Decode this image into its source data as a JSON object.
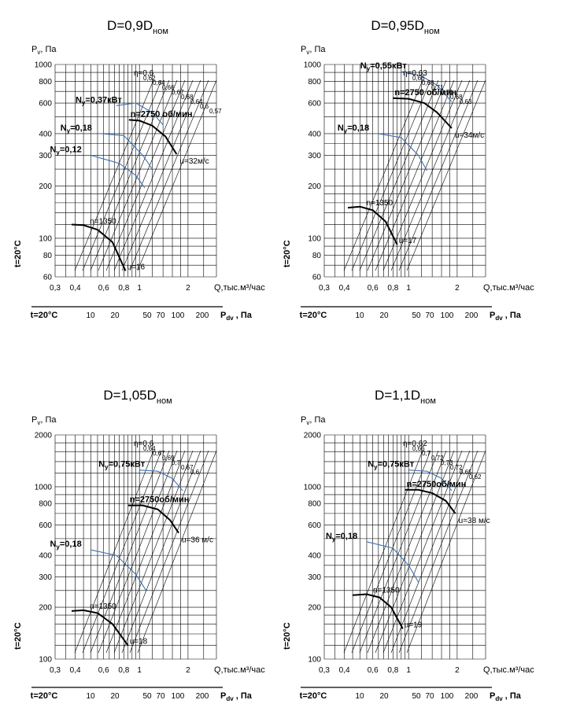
{
  "chart_data": [
    {
      "type": "line",
      "title": "D=0,9D",
      "title_sub": "ном",
      "ylabel": "P",
      "ylabel_sub": "v",
      "ylabel_unit": ", Па",
      "xlabel": "Q,тыс.м³/час",
      "temp_label": "t=20°C",
      "pdv_label": "P",
      "pdv_sub": "dv",
      "pdv_unit": " , Па",
      "ylim": [
        60,
        1000
      ],
      "xlim": [
        0.3,
        3
      ],
      "y_ticks": [
        "60",
        "80",
        "100",
        "200",
        "300",
        "400",
        "600",
        "800",
        "1000"
      ],
      "x_ticks": [
        "0,3",
        "0,4",
        "0,6",
        "0,8",
        "1",
        "2"
      ],
      "pdv_ticks": [
        "10",
        "20",
        "50",
        "70",
        "100",
        "200"
      ],
      "eta_labels": [
        "η=0,6",
        "0,62",
        "0,64",
        "0,66",
        "0,67",
        "0,68",
        "0,64",
        "0,6",
        "0,57"
      ],
      "speed_low": "n=1350",
      "speed_high": "n=2750 об/мин",
      "u_low": "u=16",
      "u_high": "u=32м/с",
      "power": [
        "N",
        "у",
        "=0,12",
        "N",
        "у",
        "=0,18",
        "N",
        "у",
        "=0,37кВт"
      ],
      "series": [
        {
          "name": "n=2750 об/мин",
          "x": [
            0.86,
            1.0,
            1.2,
            1.45,
            1.7
          ],
          "y": [
            480,
            475,
            445,
            385,
            305
          ]
        },
        {
          "name": "n=1350",
          "x": [
            0.38,
            0.45,
            0.55,
            0.68,
            0.82
          ],
          "y": [
            120,
            119,
            112,
            95,
            65
          ]
        },
        {
          "name": "N=0,37кВт",
          "x": [
            0.72,
            0.95,
            1.2,
            1.4
          ],
          "y": [
            580,
            600,
            530,
            450
          ]
        },
        {
          "name": "N=0,18",
          "x": [
            0.58,
            0.8,
            1.05,
            1.2
          ],
          "y": [
            400,
            390,
            300,
            250
          ]
        },
        {
          "name": "N=0,12",
          "x": [
            0.5,
            0.75,
            0.95,
            1.08
          ],
          "y": [
            300,
            270,
            230,
            195
          ]
        }
      ]
    },
    {
      "type": "line",
      "title": "D=0,95D",
      "title_sub": "ном",
      "ylabel": "P",
      "ylabel_sub": "v",
      "ylabel_unit": ", Па",
      "xlabel": "Q,тыс.м³/час",
      "temp_label": "t=20°C",
      "pdv_label": "P",
      "pdv_sub": "dv",
      "pdv_unit": " , Па",
      "ylim": [
        60,
        1000
      ],
      "xlim": [
        0.3,
        3
      ],
      "y_ticks": [
        "60",
        "80",
        "100",
        "200",
        "300",
        "400",
        "600",
        "800",
        "1000"
      ],
      "x_ticks": [
        "0,3",
        "0,4",
        "0,6",
        "0,8",
        "1",
        "2"
      ],
      "pdv_ticks": [
        "10",
        "20",
        "50",
        "70",
        "100",
        "200"
      ],
      "eta_labels": [
        "η=0,63",
        "0,66",
        "0,68",
        "0,71",
        "0,71",
        "0,68",
        "0,63"
      ],
      "speed_low": "n=1350",
      "speed_high": "n=2750 об/мин",
      "u_low": "u=17",
      "u_high": "u=34м/с",
      "power": [
        "N",
        "у",
        "=0,18",
        "N",
        "у",
        "=0,55кВт"
      ],
      "series": [
        {
          "name": "n=2750 об/мин",
          "x": [
            0.8,
            1.0,
            1.25,
            1.5,
            1.85
          ],
          "y": [
            640,
            635,
            600,
            530,
            430
          ]
        },
        {
          "name": "n=1350",
          "x": [
            0.42,
            0.5,
            0.6,
            0.72,
            0.85
          ],
          "y": [
            150,
            152,
            145,
            125,
            92
          ]
        },
        {
          "name": "N=0,55кВт",
          "x": [
            0.9,
            1.2,
            1.5,
            1.85
          ],
          "y": [
            910,
            860,
            760,
            610
          ]
        },
        {
          "name": "N=0,18",
          "x": [
            0.65,
            0.9,
            1.15,
            1.3
          ],
          "y": [
            400,
            380,
            300,
            245
          ]
        }
      ]
    },
    {
      "type": "line",
      "title": "D=1,05D",
      "title_sub": "ном",
      "ylabel": "P",
      "ylabel_sub": "v",
      "ylabel_unit": ", Па",
      "xlabel": "Q,тыс.м³/час",
      "temp_label": "t=20°C",
      "pdv_label": "P",
      "pdv_sub": "dv",
      "pdv_unit": " , Па",
      "ylim": [
        100,
        2000
      ],
      "xlim": [
        0.3,
        3
      ],
      "y_ticks": [
        "100",
        "200",
        "300",
        "400",
        "600",
        "800",
        "1000",
        "2000"
      ],
      "x_ticks": [
        "0,3",
        "0,4",
        "0,6",
        "0,8",
        "1",
        "2"
      ],
      "pdv_ticks": [
        "10",
        "20",
        "50",
        "70",
        "100",
        "200"
      ],
      "eta_labels": [
        "η=0,6",
        "0,64",
        "0,67",
        "0,69",
        "0,7",
        "0,67",
        "0,6"
      ],
      "speed_low": "n=1350",
      "speed_high": "n=2750об/мин",
      "u_low": "u=18",
      "u_high": "u=36 м/с",
      "power": [
        "N",
        "у",
        "=0,18",
        "N",
        "у",
        "=0,75кВт"
      ],
      "series": [
        {
          "name": "n=2750об/мин",
          "x": [
            0.85,
            1.05,
            1.3,
            1.55,
            1.75
          ],
          "y": [
            780,
            780,
            740,
            640,
            540
          ]
        },
        {
          "name": "n=1350",
          "x": [
            0.38,
            0.45,
            0.55,
            0.68,
            0.85
          ],
          "y": [
            190,
            192,
            185,
            160,
            120
          ]
        },
        {
          "name": "N=0,75кВт",
          "x": [
            1.0,
            1.3,
            1.6,
            1.85
          ],
          "y": [
            1250,
            1230,
            1120,
            950
          ]
        },
        {
          "name": "N=0,18",
          "x": [
            0.5,
            0.72,
            0.95,
            1.1
          ],
          "y": [
            430,
            400,
            310,
            250
          ]
        }
      ]
    },
    {
      "type": "line",
      "title": "D=1,1D",
      "title_sub": "ном",
      "ylabel": "P",
      "ylabel_sub": "v",
      "ylabel_unit": ", Па",
      "xlabel": "Q,тыс.м³/час",
      "temp_label": "t=20°C",
      "pdv_label": "P",
      "pdv_sub": "dv",
      "pdv_unit": " , Па",
      "ylim": [
        100,
        2000
      ],
      "xlim": [
        0.3,
        3
      ],
      "y_ticks": [
        "100",
        "200",
        "300",
        "400",
        "600",
        "800",
        "1000",
        "2000"
      ],
      "x_ticks": [
        "0,3",
        "0,4",
        "0,6",
        "0,8",
        "1",
        "2"
      ],
      "pdv_ticks": [
        "10",
        "20",
        "50",
        "70",
        "100",
        "200"
      ],
      "eta_labels": [
        "η=0,62",
        "0,66",
        "0,7",
        "0,72",
        "0,73",
        "0,72",
        "0,65",
        "0,62"
      ],
      "speed_low": "n=1350",
      "speed_high": "n=2750об/мин",
      "u_low": "u=19",
      "u_high": "u=38 м/с",
      "power": [
        "N",
        "у",
        "=0,18",
        "N",
        "у",
        "=0,75кВт"
      ],
      "series": [
        {
          "name": "n=2750об/мин",
          "x": [
            0.95,
            1.15,
            1.4,
            1.7,
            1.95
          ],
          "y": [
            960,
            960,
            920,
            830,
            700
          ]
        },
        {
          "name": "n=1350",
          "x": [
            0.45,
            0.55,
            0.66,
            0.78,
            0.92
          ],
          "y": [
            235,
            238,
            228,
            200,
            150
          ]
        },
        {
          "name": "N=0,75кВт",
          "x": [
            1.0,
            1.3,
            1.6,
            1.85
          ],
          "y": [
            1250,
            1230,
            1120,
            950
          ]
        },
        {
          "name": "N=0,18",
          "x": [
            0.55,
            0.8,
            1.0,
            1.15
          ],
          "y": [
            480,
            440,
            350,
            280
          ]
        }
      ]
    }
  ]
}
